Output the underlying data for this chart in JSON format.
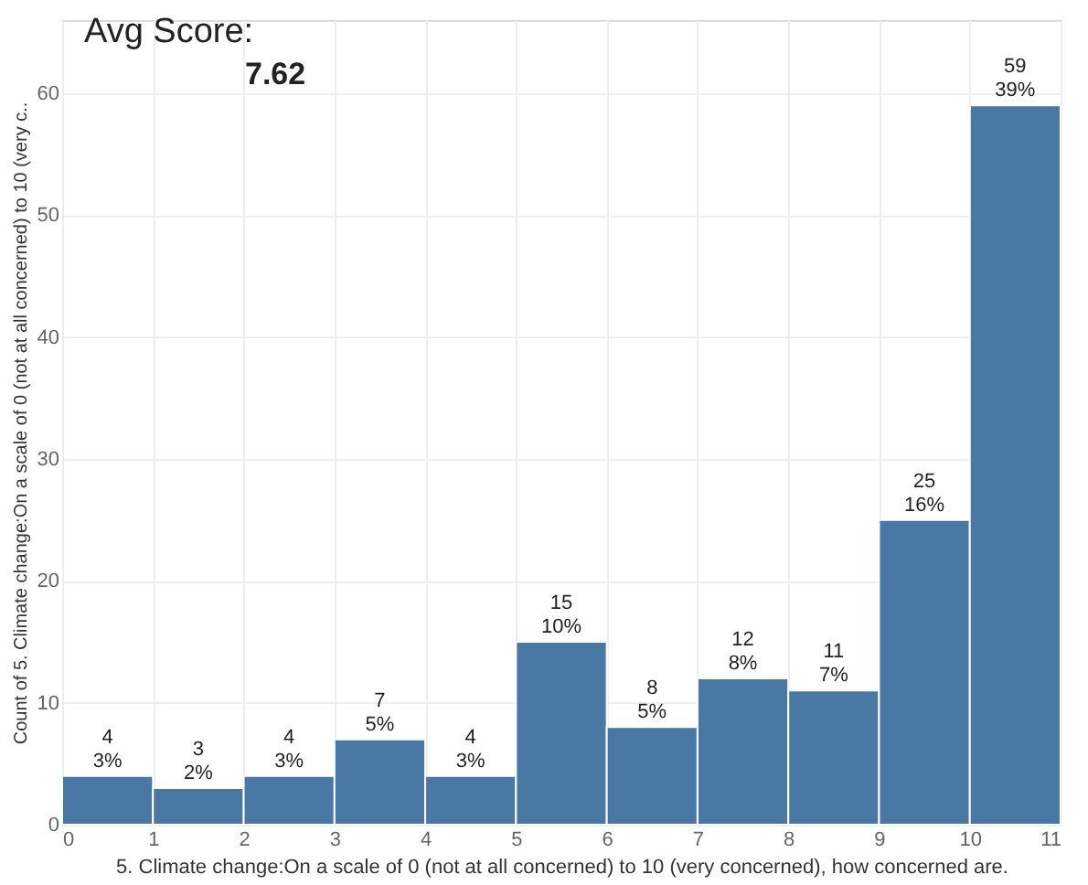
{
  "chart_data": {
    "type": "histogram",
    "bins": [
      0,
      1,
      2,
      3,
      4,
      5,
      6,
      7,
      8,
      9,
      10,
      11
    ],
    "values": [
      4,
      3,
      4,
      7,
      4,
      15,
      8,
      12,
      11,
      25,
      59
    ],
    "value_labels": [
      "4\n3%",
      "3\n2%",
      "4\n3%",
      "7\n5%",
      "4\n3%",
      "15\n10%",
      "8\n5%",
      "12\n8%",
      "11\n7%",
      "25\n16%",
      "59\n39%"
    ],
    "color": "#4a78a5",
    "xlabel": "5. Climate change:On a scale of 0 (not at all concerned) to 10 (very concerned), how concerned are.",
    "ylabel": "Count of 5. Climate change:On a scale of 0 (not at all concerned) to 10 (very c..",
    "xlim": [
      0,
      11
    ],
    "xticks": [
      0,
      1,
      2,
      3,
      4,
      5,
      6,
      7,
      8,
      9,
      10,
      11
    ],
    "ylim": [
      0,
      66
    ],
    "yticks": [
      0,
      10,
      20,
      30,
      40,
      50,
      60
    ],
    "grid": true,
    "annotations": [
      "Avg Score:",
      "7.62"
    ]
  }
}
